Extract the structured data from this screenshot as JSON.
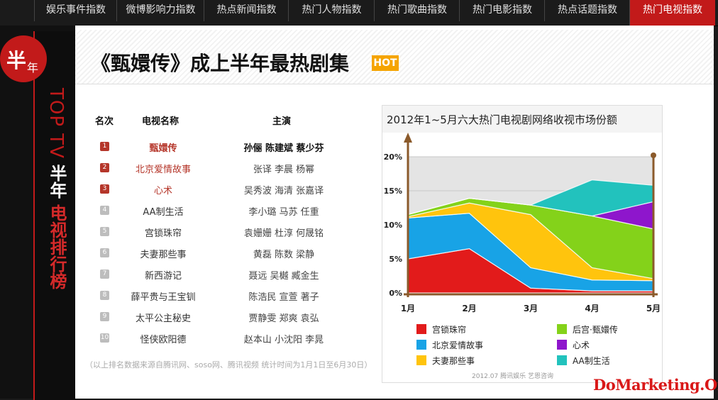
{
  "nav": {
    "items": [
      {
        "label": "娱乐事件指数",
        "active": false
      },
      {
        "label": "微博影响力指数",
        "active": false
      },
      {
        "label": "热点新闻指数",
        "active": false
      },
      {
        "label": "热门人物指数",
        "active": false
      },
      {
        "label": "热门歌曲指数",
        "active": false
      },
      {
        "label": "热门电影指数",
        "active": false
      },
      {
        "label": "热点话题指数",
        "active": false
      },
      {
        "label": "热门电视指数",
        "active": true
      }
    ]
  },
  "sidebar": {
    "badge_big": "半",
    "badge_small": "年",
    "top_tv": "TOP TV",
    "half_year": "半年",
    "ranking": "电视排行榜"
  },
  "header": {
    "title": "《甄嬛传》成上半年最热剧集",
    "hot": "HOT"
  },
  "table": {
    "headers": {
      "rank": "名次",
      "name": "电视名称",
      "actors": "主演"
    },
    "rows": [
      {
        "rank": "1",
        "name": "甄嬛传",
        "actors": "孙俪 陈建斌 蔡少芬"
      },
      {
        "rank": "2",
        "name": "北京爱情故事",
        "actors": "张译 李晨 杨幂"
      },
      {
        "rank": "3",
        "name": "心术",
        "actors": "吴秀波 海清 张嘉译"
      },
      {
        "rank": "4",
        "name": "AA制生活",
        "actors": "李小璐 马苏 任重"
      },
      {
        "rank": "5",
        "name": "宫锁珠帘",
        "actors": "袁姗姗 杜淳 何晟铭"
      },
      {
        "rank": "6",
        "name": "夫妻那些事",
        "actors": "黄磊 陈数 梁静"
      },
      {
        "rank": "7",
        "name": "新西游记",
        "actors": "聂远 吴樾 臧金生"
      },
      {
        "rank": "8",
        "name": "薛平贵与王宝钏",
        "actors": "陈浩民 宣萱 著子"
      },
      {
        "rank": "9",
        "name": "太平公主秘史",
        "actors": "贾静雯 郑爽 袁弘"
      },
      {
        "rank": "10",
        "name": "怪侠欧阳德",
        "actors": "赵本山 小沈阳 李晁"
      }
    ],
    "note": "（以上排名数据来源自腾讯网、soso网、腾讯视频 统计时间为1月1日至6月30日）"
  },
  "chart_data": {
    "type": "area",
    "title": "2012年1~5月六大热门电视剧网络收视市场份额",
    "x": [
      "1月",
      "2月",
      "3月",
      "4月",
      "5月"
    ],
    "ylim": [
      0,
      20
    ],
    "yticks": [
      "0%",
      "5%",
      "10%",
      "15%",
      "20%"
    ],
    "series": [
      {
        "name": "宫锁珠帘",
        "color": "#e21b1b",
        "values": [
          5,
          6.5,
          0.7,
          0.3,
          0.3
        ]
      },
      {
        "name": "北京爱情故事",
        "color": "#18a3e6",
        "values": [
          6,
          5.2,
          3,
          1.6,
          1.5
        ]
      },
      {
        "name": "夫妻那些事",
        "color": "#ffc40d",
        "values": [
          0.2,
          1.5,
          7.8,
          1.8,
          0.3
        ]
      },
      {
        "name": "后宫·甄嬛传",
        "color": "#84d21a",
        "values": [
          0.3,
          0.7,
          1.4,
          7.6,
          7.3
        ]
      },
      {
        "name": "心术",
        "color": "#8e16cc",
        "values": [
          0,
          0,
          0,
          0,
          4
        ]
      },
      {
        "name": "AA制生活",
        "color": "#22c2bd",
        "values": [
          0,
          0,
          0,
          5.3,
          2.4
        ]
      }
    ],
    "footer": "2012.07 腾讯娱乐 艺恩咨询"
  },
  "watermark": "DoMarketing.Org"
}
